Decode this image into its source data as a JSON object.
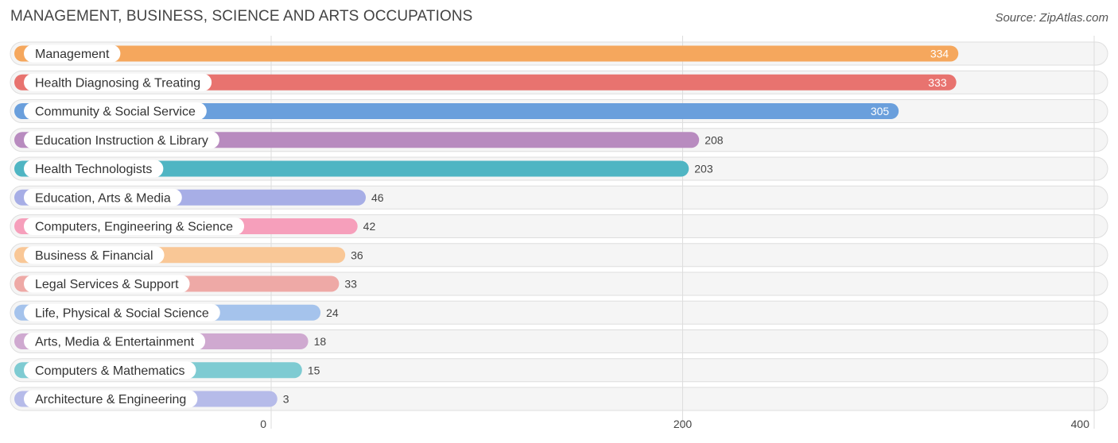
{
  "title": "MANAGEMENT, BUSINESS, SCIENCE AND ARTS OCCUPATIONS",
  "source": "Source: ZipAtlas.com",
  "chart_data": {
    "type": "bar",
    "orientation": "horizontal",
    "categories": [
      "Management",
      "Health Diagnosing & Treating",
      "Community & Social Service",
      "Education Instruction & Library",
      "Health Technologists",
      "Education, Arts & Media",
      "Computers, Engineering & Science",
      "Business & Financial",
      "Legal Services & Support",
      "Life, Physical & Social Science",
      "Arts, Media & Entertainment",
      "Computers & Mathematics",
      "Architecture & Engineering"
    ],
    "values": [
      334,
      333,
      305,
      208,
      203,
      46,
      42,
      36,
      33,
      24,
      18,
      15,
      3
    ],
    "colors": [
      "#f5a75d",
      "#e8736f",
      "#6a9fdc",
      "#b88bbf",
      "#4fb5c3",
      "#a7aee6",
      "#f69fbb",
      "#f9c796",
      "#eea9a6",
      "#a5c3ec",
      "#cfa9d0",
      "#7ecbd2",
      "#b6bbe9"
    ],
    "xlim": [
      0,
      400
    ],
    "xticks": [
      0,
      200,
      400
    ],
    "grid": true
  }
}
